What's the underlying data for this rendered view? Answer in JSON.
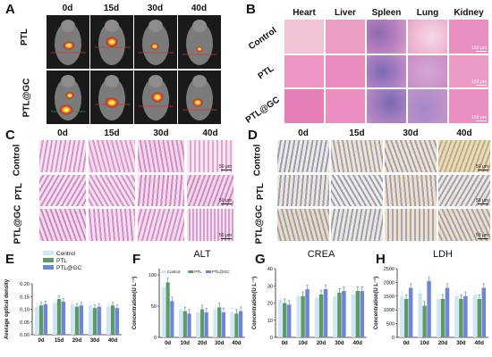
{
  "panels": {
    "A": {
      "label": "A",
      "columns": [
        "0d",
        "15d",
        "30d",
        "40d"
      ],
      "rows": [
        "PTL",
        "PTL@GC"
      ]
    },
    "B": {
      "label": "B",
      "columns": [
        "Heart",
        "Liver",
        "Spleen",
        "Lung",
        "Kidney"
      ],
      "rows": [
        "Control",
        "PTL",
        "PTL@GC"
      ],
      "scale_text": "150 μm"
    },
    "C": {
      "label": "C",
      "columns": [
        "0d",
        "15d",
        "30d",
        "40d"
      ],
      "rows": [
        "Control",
        "PTL",
        "PTL@GC"
      ],
      "scale_text": "50 μm"
    },
    "D": {
      "label": "D",
      "columns": [
        "0d",
        "15d",
        "30d",
        "40d"
      ],
      "rows": [
        "Control",
        "PTL",
        "PTL@GC"
      ],
      "scale_text": "50 μm"
    }
  },
  "colors": {
    "control": "#cfe6f5",
    "ptl": "#5d9a67",
    "ptl_gc": "#6f86d6",
    "he_stain": "#e58fc0",
    "ihc_stain": "#9fa2bd"
  },
  "chart_data": [
    {
      "panel": "E",
      "type": "bar",
      "title": "",
      "ylabel": "Average optical density",
      "xlabel": "",
      "categories": [
        "0d",
        "15d",
        "20d",
        "30d",
        "40d"
      ],
      "ylim": [
        0,
        0.2
      ],
      "yticks": [
        "0.00",
        "0.05",
        "0.10",
        "0.15",
        "0.20"
      ],
      "legend": [
        "Control",
        "PTL",
        "PTL@GC"
      ],
      "legend_position": "top-left",
      "series": [
        {
          "name": "Control",
          "values": [
            0.11,
            0.125,
            0.12,
            0.115,
            0.11
          ]
        },
        {
          "name": "PTL",
          "values": [
            0.115,
            0.14,
            0.11,
            0.105,
            0.115
          ]
        },
        {
          "name": "PTL@GC",
          "values": [
            0.12,
            0.13,
            0.115,
            0.11,
            0.105
          ]
        }
      ]
    },
    {
      "panel": "F",
      "type": "bar",
      "title": "ALT",
      "ylabel": "Concentration(U L⁻¹)",
      "xlabel": "",
      "categories": [
        "0d",
        "10d",
        "20d",
        "30d",
        "40d"
      ],
      "ylim": [
        0,
        110
      ],
      "yticks": [
        "0",
        "50",
        "100"
      ],
      "legend": [
        "Control",
        "PTL",
        "PTL@GC"
      ],
      "legend_position": "top",
      "series": [
        {
          "name": "Control",
          "values": [
            80,
            45,
            40,
            45,
            40
          ]
        },
        {
          "name": "PTL",
          "values": [
            88,
            42,
            45,
            48,
            38
          ]
        },
        {
          "name": "PTL@GC",
          "values": [
            58,
            38,
            40,
            40,
            42
          ]
        }
      ]
    },
    {
      "panel": "G",
      "type": "bar",
      "title": "CREA",
      "ylabel": "Concentration(U L⁻¹)",
      "xlabel": "",
      "categories": [
        "0d",
        "10d",
        "20d",
        "30d",
        "40d"
      ],
      "ylim": [
        0,
        40
      ],
      "yticks": [
        "0",
        "10",
        "20",
        "30",
        "40"
      ],
      "legend": [
        "Control",
        "PTL",
        "PTL@GC"
      ],
      "legend_position": "none",
      "series": [
        {
          "name": "Control",
          "values": [
            22,
            24,
            23,
            24,
            25
          ]
        },
        {
          "name": "PTL",
          "values": [
            20,
            24,
            25,
            26,
            27
          ]
        },
        {
          "name": "PTL@GC",
          "values": [
            19,
            28,
            28,
            27,
            27
          ]
        }
      ]
    },
    {
      "panel": "H",
      "type": "bar",
      "title": "LDH",
      "ylabel": "Concentration(U L⁻¹)",
      "xlabel": "",
      "categories": [
        "0d",
        "10d",
        "20d",
        "30d",
        "40d"
      ],
      "ylim": [
        0,
        2500
      ],
      "yticks": [
        "0",
        "500",
        "1000",
        "1500",
        "2000",
        "2500"
      ],
      "legend": [
        "Control",
        "PTL",
        "PTL@GC"
      ],
      "legend_position": "none",
      "series": [
        {
          "name": "Control",
          "values": [
            1500,
            1600,
            1400,
            1500,
            1550
          ]
        },
        {
          "name": "PTL",
          "values": [
            1400,
            1150,
            1400,
            1400,
            1400
          ]
        },
        {
          "name": "PTL@GC",
          "values": [
            1800,
            2050,
            1800,
            1500,
            1800
          ]
        }
      ]
    }
  ]
}
